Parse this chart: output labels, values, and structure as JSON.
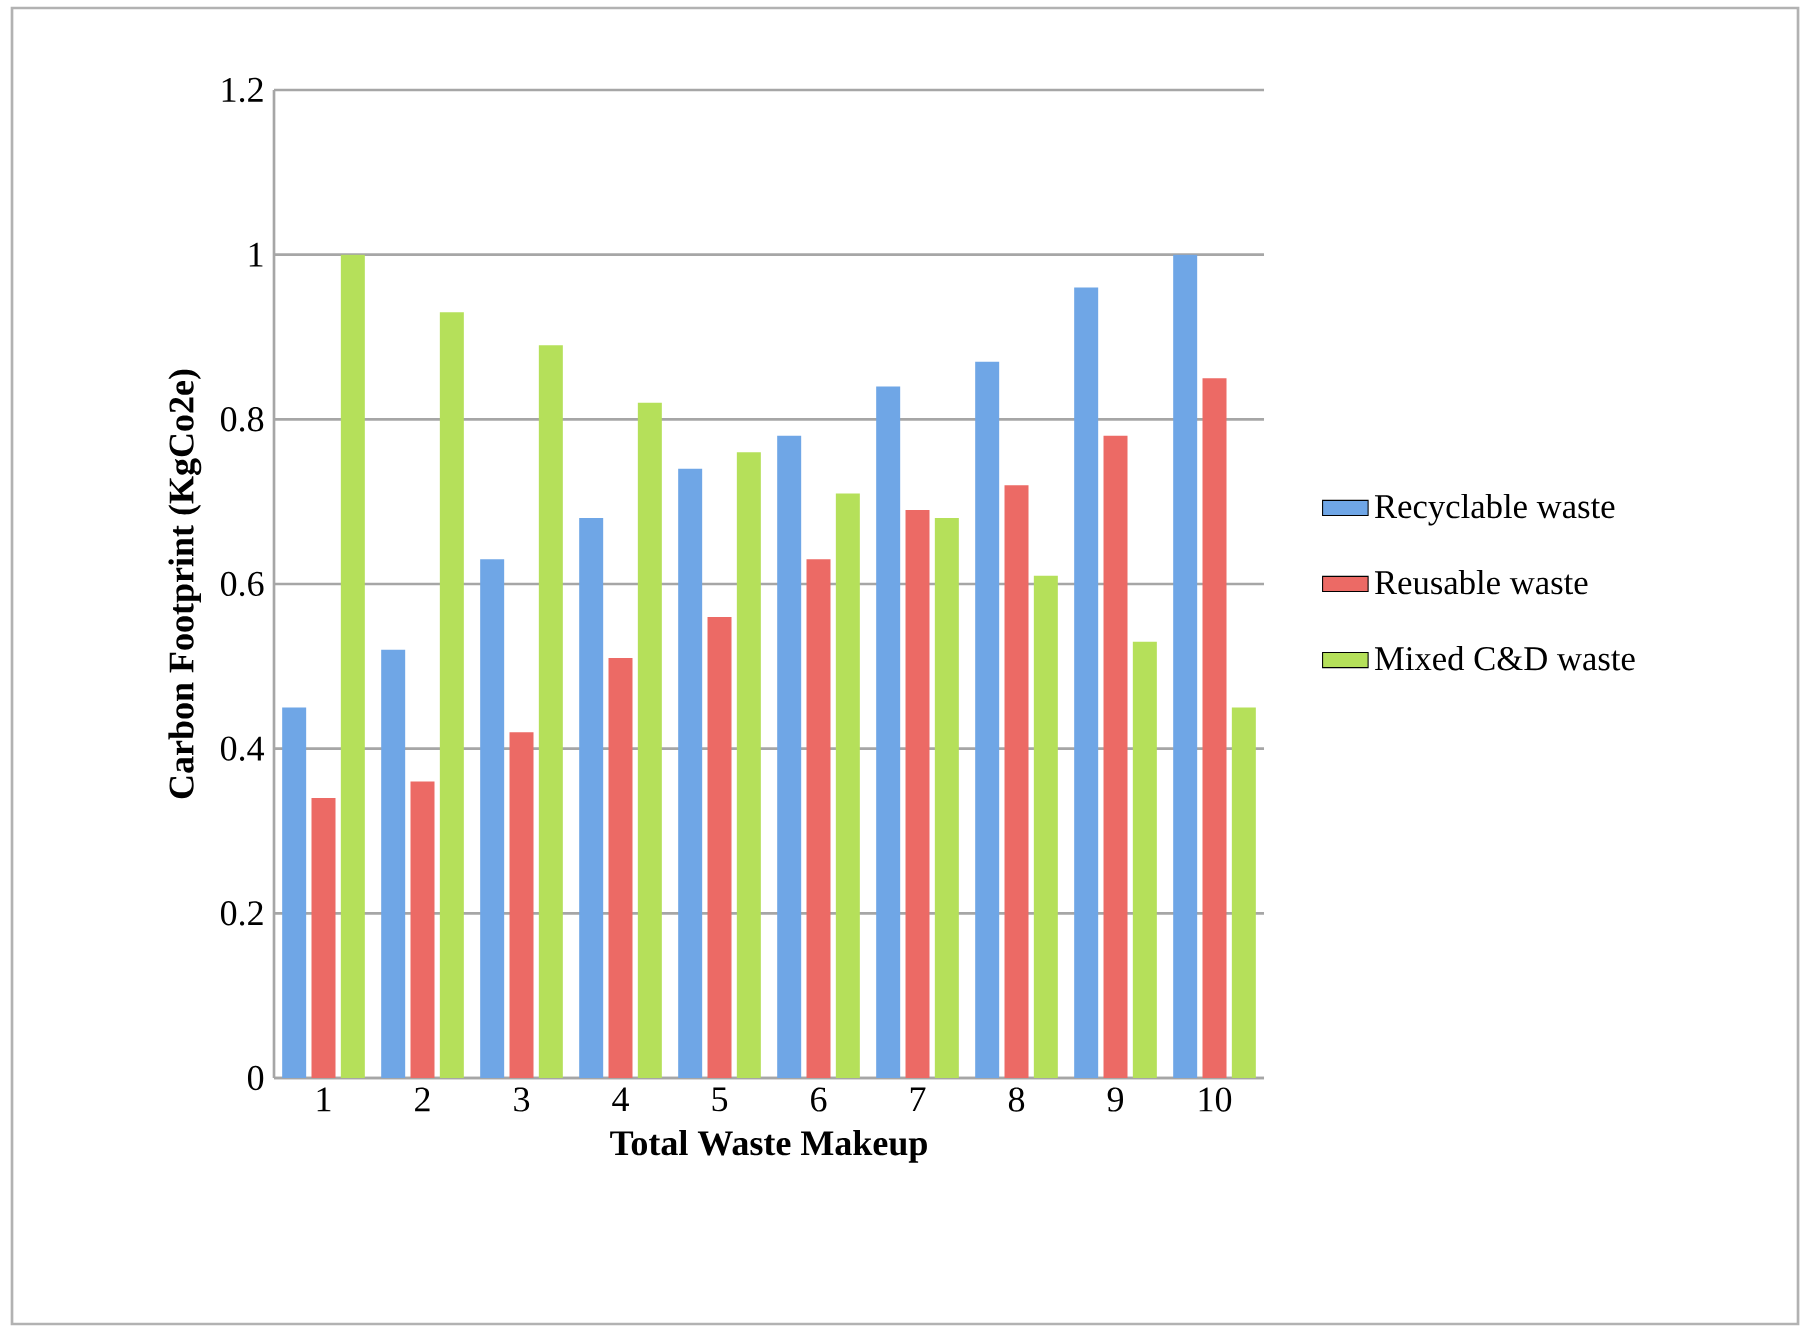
{
  "chart_data": {
    "type": "bar",
    "xlabel": "Total Waste Makeup",
    "ylabel": "Carbon Footprint (KgCo2e)",
    "categories": [
      "1",
      "2",
      "3",
      "4",
      "5",
      "6",
      "7",
      "8",
      "9",
      "10"
    ],
    "series": [
      {
        "name": "Recyclable waste",
        "color": "#6fa6e6",
        "values": [
          0.45,
          0.52,
          0.63,
          0.68,
          0.74,
          0.78,
          0.84,
          0.87,
          0.96,
          1.0
        ]
      },
      {
        "name": "Reusable waste",
        "color": "#ec6a65",
        "values": [
          0.34,
          0.36,
          0.42,
          0.51,
          0.56,
          0.63,
          0.69,
          0.72,
          0.78,
          0.85
        ]
      },
      {
        "name": "Mixed C&D waste",
        "color": "#b5e05a",
        "values": [
          1.0,
          0.93,
          0.89,
          0.82,
          0.76,
          0.71,
          0.68,
          0.61,
          0.53,
          0.45
        ]
      }
    ],
    "ylim": [
      0,
      1.2
    ],
    "yticks": [
      0,
      0.2,
      0.4,
      0.6,
      0.8,
      1,
      1.2
    ],
    "grid": "y",
    "legend": "right"
  }
}
